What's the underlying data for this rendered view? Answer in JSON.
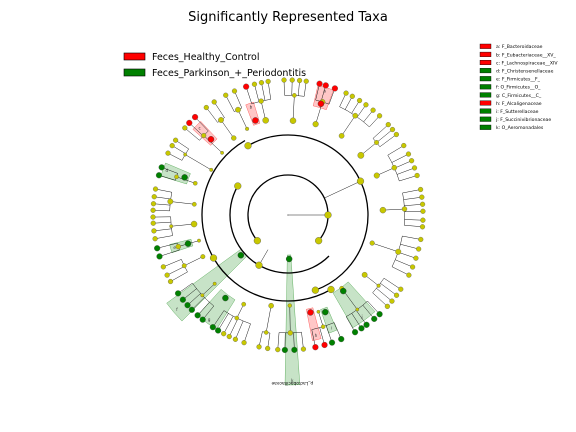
{
  "chart_data": {
    "type": "cladogram",
    "title": "Significantly Represented Taxa",
    "legend_placement": "top-left",
    "grid": false,
    "groups": [
      {
        "name": "Feces_Healthy_Control",
        "color": "#ff0000"
      },
      {
        "name": "Feces_Parkinson_+_Periodontitis",
        "color": "#008000"
      }
    ],
    "neutral_node_color": "#c8c800",
    "taxa_key": [
      {
        "label": "a: F_Bacteroidaceae",
        "group": 0
      },
      {
        "label": "b: F_Eubacteriaceae__XV_",
        "group": 0
      },
      {
        "label": "c: F_Lachnospiraceae__XIV",
        "group": 0
      },
      {
        "label": "d: F_Christensenellaceae",
        "group": 1
      },
      {
        "label": "e: F_Firmicutes__F_",
        "group": 1
      },
      {
        "label": "f: O_Firmicutes__O_",
        "group": 1
      },
      {
        "label": "g: C_Firmicutes__C_",
        "group": 1
      },
      {
        "label": "h: F_Alcaligenaceae",
        "group": 0
      },
      {
        "label": "i: F_Sutterellaceae",
        "group": 1
      },
      {
        "label": "j: F_Succinivibrionaceae",
        "group": 1
      },
      {
        "label": "k: O_Aeromonadales",
        "group": 1
      }
    ],
    "highlighted_clades": [
      {
        "letter": "a",
        "group": 0
      },
      {
        "letter": "b",
        "group": 0
      },
      {
        "letter": "c",
        "group": 0
      },
      {
        "letter": "d",
        "group": 1
      },
      {
        "letter": "e",
        "group": 1
      },
      {
        "letter": "f",
        "group": 1
      },
      {
        "letter": "g",
        "group": 1
      },
      {
        "letter": "h",
        "group": 0
      },
      {
        "letter": "i",
        "group": 1
      },
      {
        "letter": "j",
        "group": 1
      },
      {
        "letter": "k",
        "group": 1
      }
    ],
    "named_clade_label": "p_Lactobacillaceae"
  }
}
